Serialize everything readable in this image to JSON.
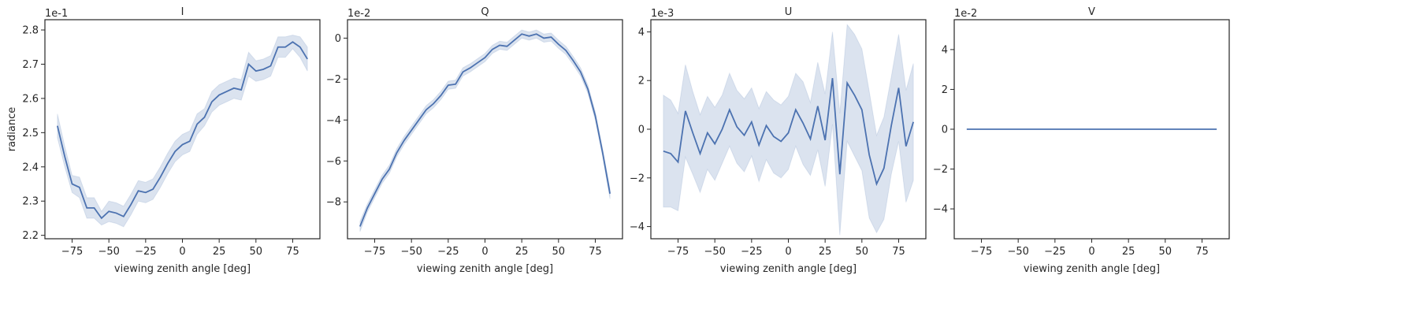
{
  "chart_data": [
    {
      "type": "line",
      "title": "I",
      "x_label": "viewing zenith angle [deg]",
      "y_label": "radiance",
      "offset_label": "1e-1",
      "color": "#4c72b0",
      "x": [
        -85,
        -80,
        -75,
        -70,
        -65,
        -60,
        -55,
        -50,
        -45,
        -40,
        -35,
        -30,
        -25,
        -20,
        -15,
        -10,
        -5,
        0,
        5,
        10,
        15,
        20,
        25,
        30,
        35,
        40,
        45,
        50,
        55,
        60,
        65,
        70,
        75,
        80,
        85
      ],
      "values": [
        2.52,
        2.43,
        2.35,
        2.34,
        2.28,
        2.28,
        2.25,
        2.27,
        2.265,
        2.255,
        2.29,
        2.33,
        2.325,
        2.335,
        2.37,
        2.41,
        2.445,
        2.465,
        2.475,
        2.525,
        2.545,
        2.59,
        2.61,
        2.62,
        2.63,
        2.625,
        2.7,
        2.68,
        2.685,
        2.695,
        2.75,
        2.75,
        2.765,
        2.75,
        2.715
      ],
      "errors": [
        0.035,
        0.03,
        0.025,
        0.03,
        0.03,
        0.03,
        0.02,
        0.03,
        0.03,
        0.03,
        0.03,
        0.03,
        0.03,
        0.03,
        0.03,
        0.03,
        0.03,
        0.03,
        0.03,
        0.03,
        0.025,
        0.03,
        0.03,
        0.03,
        0.03,
        0.03,
        0.035,
        0.03,
        0.03,
        0.03,
        0.03,
        0.03,
        0.02,
        0.03,
        0.035
      ],
      "xlim": [
        -93.5,
        93.5
      ],
      "xticks": [
        {
          "value": -75,
          "label": "−75"
        },
        {
          "value": -50,
          "label": "−50"
        },
        {
          "value": -25,
          "label": "−25"
        },
        0,
        25,
        50,
        75
      ],
      "ylim": [
        2.19,
        2.83
      ],
      "yticks": [
        2.2,
        2.3,
        2.4,
        2.5,
        2.6,
        2.7,
        2.8
      ]
    },
    {
      "type": "line",
      "title": "Q",
      "x_label": "viewing zenith angle [deg]",
      "offset_label": "1e-2",
      "color": "#4c72b0",
      "x": [
        -85,
        -80,
        -75,
        -70,
        -65,
        -60,
        -55,
        -50,
        -45,
        -40,
        -35,
        -30,
        -25,
        -20,
        -15,
        -10,
        -5,
        0,
        5,
        10,
        15,
        20,
        25,
        30,
        35,
        40,
        45,
        50,
        55,
        60,
        65,
        70,
        75,
        80,
        85
      ],
      "values": [
        -9.2,
        -8.3,
        -7.6,
        -6.9,
        -6.4,
        -5.6,
        -5.0,
        -4.5,
        -4.0,
        -3.5,
        -3.2,
        -2.8,
        -2.3,
        -2.25,
        -1.65,
        -1.45,
        -1.2,
        -0.95,
        -0.55,
        -0.35,
        -0.4,
        -0.1,
        0.2,
        0.1,
        0.2,
        0.0,
        0.05,
        -0.3,
        -0.6,
        -1.1,
        -1.65,
        -2.5,
        -3.8,
        -5.6,
        -7.6
      ],
      "errors": [
        0.25,
        0.2,
        0.2,
        0.2,
        0.2,
        0.2,
        0.2,
        0.2,
        0.2,
        0.2,
        0.2,
        0.2,
        0.2,
        0.2,
        0.2,
        0.2,
        0.2,
        0.2,
        0.2,
        0.2,
        0.2,
        0.2,
        0.2,
        0.2,
        0.2,
        0.2,
        0.2,
        0.2,
        0.2,
        0.2,
        0.2,
        0.2,
        0.2,
        0.2,
        0.25
      ],
      "xlim": [
        -93.5,
        93.5
      ],
      "xticks": [
        {
          "value": -75,
          "label": "−75"
        },
        {
          "value": -50,
          "label": "−50"
        },
        {
          "value": -25,
          "label": "−25"
        },
        0,
        25,
        50,
        75
      ],
      "ylim": [
        -9.8,
        0.9
      ],
      "yticks": [
        {
          "value": -8,
          "label": "−8"
        },
        {
          "value": -6,
          "label": "−6"
        },
        {
          "value": -4,
          "label": "−4"
        },
        {
          "value": -2,
          "label": "−2"
        },
        0
      ]
    },
    {
      "type": "line",
      "title": "U",
      "x_label": "viewing zenith angle [deg]",
      "offset_label": "1e-3",
      "color": "#4c72b0",
      "x": [
        -85,
        -80,
        -75,
        -70,
        -65,
        -60,
        -55,
        -50,
        -45,
        -40,
        -35,
        -30,
        -25,
        -20,
        -15,
        -10,
        -5,
        0,
        5,
        10,
        15,
        20,
        25,
        30,
        35,
        40,
        45,
        50,
        55,
        60,
        65,
        70,
        75,
        80,
        85
      ],
      "values": [
        -0.9,
        -1.0,
        -1.35,
        0.75,
        -0.15,
        -1.0,
        -0.15,
        -0.6,
        0.0,
        0.8,
        0.1,
        -0.25,
        0.3,
        -0.65,
        0.15,
        -0.3,
        -0.5,
        -0.15,
        0.8,
        0.25,
        -0.4,
        0.95,
        -0.45,
        2.1,
        -1.85,
        1.9,
        1.4,
        0.8,
        -1.05,
        -2.25,
        -1.6,
        0.15,
        1.7,
        -0.7,
        0.3
      ],
      "errors": [
        2.3,
        2.2,
        2.0,
        1.9,
        1.7,
        1.6,
        1.5,
        1.5,
        1.4,
        1.5,
        1.5,
        1.5,
        1.4,
        1.5,
        1.4,
        1.5,
        1.5,
        1.5,
        1.5,
        1.7,
        1.5,
        1.8,
        1.9,
        1.9,
        2.5,
        2.4,
        2.5,
        2.5,
        2.6,
        2.0,
        2.1,
        2.0,
        2.2,
        2.3,
        2.4
      ],
      "xlim": [
        -93.5,
        93.5
      ],
      "xticks": [
        {
          "value": -75,
          "label": "−75"
        },
        {
          "value": -50,
          "label": "−50"
        },
        {
          "value": -25,
          "label": "−25"
        },
        0,
        25,
        50,
        75
      ],
      "ylim": [
        -4.5,
        4.5
      ],
      "yticks": [
        {
          "value": -4,
          "label": "−4"
        },
        {
          "value": -2,
          "label": "−2"
        },
        0,
        2,
        4
      ]
    },
    {
      "type": "line",
      "title": "V",
      "x_label": "viewing zenith angle [deg]",
      "offset_label": "1e-2",
      "color": "#4c72b0",
      "x": [
        -85,
        -80,
        -75,
        -70,
        -65,
        -60,
        -55,
        -50,
        -45,
        -40,
        -35,
        -30,
        -25,
        -20,
        -15,
        -10,
        -5,
        0,
        5,
        10,
        15,
        20,
        25,
        30,
        35,
        40,
        45,
        50,
        55,
        60,
        65,
        70,
        75,
        80,
        85
      ],
      "values": [
        0,
        0,
        0,
        0,
        0,
        0,
        0,
        0,
        0,
        0,
        0,
        0,
        0,
        0,
        0,
        0,
        0,
        0,
        0,
        0,
        0,
        0,
        0,
        0,
        0,
        0,
        0,
        0,
        0,
        0,
        0,
        0,
        0,
        0,
        0
      ],
      "errors": [
        0,
        0,
        0,
        0,
        0,
        0,
        0,
        0,
        0,
        0,
        0,
        0,
        0,
        0,
        0,
        0,
        0,
        0,
        0,
        0,
        0,
        0,
        0,
        0,
        0,
        0,
        0,
        0,
        0,
        0,
        0,
        0,
        0,
        0,
        0
      ],
      "xlim": [
        -93.5,
        93.5
      ],
      "xticks": [
        {
          "value": -75,
          "label": "−75"
        },
        {
          "value": -50,
          "label": "−50"
        },
        {
          "value": -25,
          "label": "−25"
        },
        0,
        25,
        50,
        75
      ],
      "ylim": [
        -5.5,
        5.5
      ],
      "yticks": [
        {
          "value": -4,
          "label": "−4"
        },
        {
          "value": -2,
          "label": "−2"
        },
        0,
        2,
        4
      ]
    }
  ]
}
